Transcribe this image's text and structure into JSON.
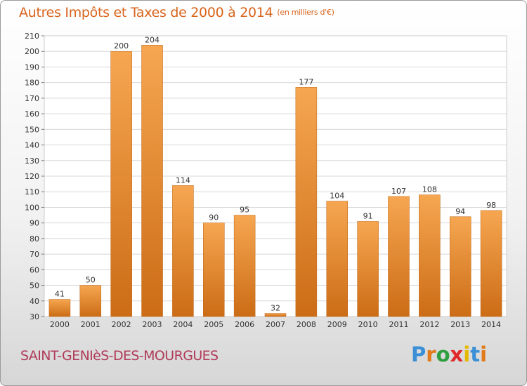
{
  "title": "Autres Impôts et Taxes de 2000 à 2014",
  "title_unit": "(en milliers d'€)",
  "commune": "SAINT-GENIèS-DES-MOURGUES",
  "brand": {
    "letters": [
      "P",
      "r",
      "o",
      "x",
      "i",
      "t",
      "i"
    ],
    "colors": [
      "#3a8fd6",
      "#e07a1a",
      "#2e9e3e",
      "#e02828",
      "#e5b800",
      "#3a8fd6",
      "#e07a1a"
    ]
  },
  "colors": {
    "title": "#d9641c",
    "commune": "#b03b58",
    "bar_light": "#f6a651",
    "bar_dark": "#cc6c16",
    "grid": "#d8d8d8"
  },
  "chart_data": {
    "type": "bar",
    "title": "Autres Impôts et Taxes de 2000 à 2014",
    "xlabel": "",
    "ylabel": "",
    "ylim": [
      30,
      210
    ],
    "ytick_step": 10,
    "grid": true,
    "categories": [
      "2000",
      "2001",
      "2002",
      "2003",
      "2004",
      "2005",
      "2006",
      "2007",
      "2008",
      "2009",
      "2010",
      "2011",
      "2012",
      "2013",
      "2014"
    ],
    "values": [
      41,
      50,
      200,
      204,
      114,
      90,
      95,
      32,
      177,
      104,
      91,
      107,
      108,
      94,
      98
    ]
  }
}
